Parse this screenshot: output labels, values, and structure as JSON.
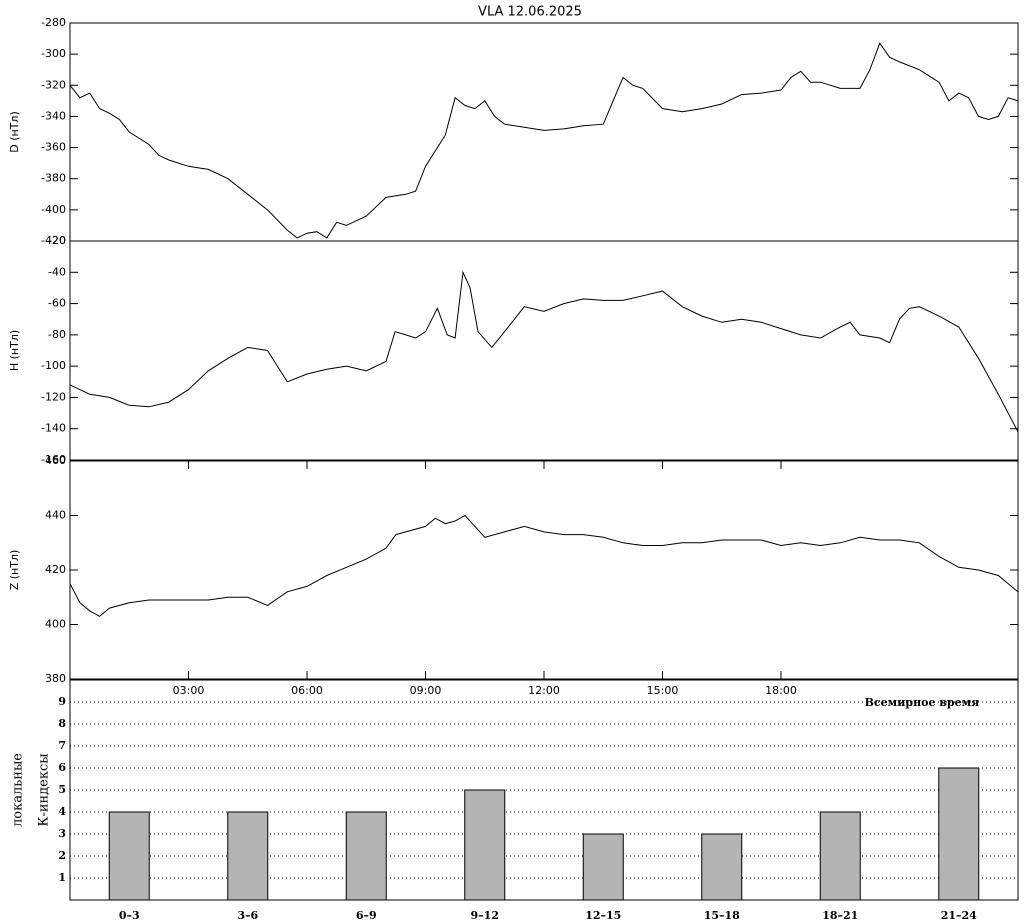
{
  "chart_data": [
    {
      "type": "line",
      "title": "VLA   12.06.2025",
      "y_label": "D (нТл)",
      "color": "#000000",
      "xlim": [
        0,
        24
      ],
      "ylim": [
        -420,
        -280
      ],
      "yticks": [
        -280,
        -300,
        -320,
        -340,
        -360,
        -380,
        -400,
        -420
      ],
      "x": [
        0,
        0.25,
        0.5,
        0.75,
        1,
        1.25,
        1.5,
        2,
        2.25,
        2.5,
        3,
        3.5,
        4,
        4.5,
        5,
        5.5,
        5.75,
        6,
        6.25,
        6.5,
        6.75,
        7,
        7.5,
        8,
        8.5,
        8.75,
        9,
        9.25,
        9.5,
        9.75,
        10,
        10.25,
        10.5,
        10.75,
        11,
        11.5,
        12,
        12.5,
        13,
        13.5,
        13.75,
        14,
        14.25,
        14.5,
        15,
        15.5,
        16,
        16.5,
        17,
        17.5,
        18,
        18.25,
        18.5,
        18.75,
        19,
        19.5,
        20,
        20.25,
        20.5,
        20.75,
        21,
        21.5,
        22,
        22.25,
        22.5,
        22.75,
        23,
        23.25,
        23.5,
        23.75,
        24
      ],
      "values": [
        -320,
        -328,
        -325,
        -335,
        -338,
        -342,
        -350,
        -358,
        -365,
        -368,
        -372,
        -374,
        -380,
        -390,
        -400,
        -413,
        -418,
        -415,
        -414,
        -418,
        -408,
        -410,
        -404,
        -392,
        -390,
        -388,
        -372,
        -362,
        -352,
        -328,
        -333,
        -335,
        -330,
        -340,
        -345,
        -347,
        -349,
        -348,
        -346,
        -345,
        -330,
        -315,
        -320,
        -322,
        -335,
        -337,
        -335,
        -332,
        -326,
        -325,
        -323,
        -315,
        -311,
        -318,
        -318,
        -322,
        -322,
        -310,
        -293,
        -302,
        -305,
        -310,
        -318,
        -330,
        -325,
        -328,
        -340,
        -342,
        -340,
        -328,
        -330
      ]
    },
    {
      "type": "line",
      "y_label": "H (нТл)",
      "color": "#000000",
      "xlim": [
        0,
        24
      ],
      "ylim": [
        -160,
        -20
      ],
      "yticks": [
        -20,
        -40,
        -60,
        -80,
        -100,
        -120,
        -140,
        -160
      ],
      "x": [
        0,
        0.5,
        1,
        1.5,
        2,
        2.5,
        3,
        3.5,
        4,
        4.5,
        5,
        5.25,
        5.5,
        6,
        6.5,
        7,
        7.5,
        8,
        8.23,
        8.5,
        8.75,
        9,
        9.3,
        9.55,
        9.75,
        9.95,
        10.13,
        10.33,
        10.68,
        11,
        11.5,
        12,
        12.5,
        13,
        13.5,
        14,
        14.5,
        15,
        15.5,
        16,
        16.5,
        17,
        17.5,
        18,
        18.5,
        19,
        19.5,
        19.75,
        20,
        20.5,
        20.75,
        21,
        21.25,
        21.5,
        22,
        22.5,
        23,
        23.5,
        24
      ],
      "values": [
        -112,
        -118,
        -120,
        -125,
        -126,
        -123,
        -115,
        -103,
        -95,
        -88,
        -90,
        -100,
        -110,
        -105,
        -102,
        -100,
        -103,
        -97,
        -78,
        -80,
        -82,
        -78,
        -63,
        -80,
        -82,
        -40,
        -50,
        -78,
        -88,
        -78,
        -62,
        -65,
        -60,
        -57,
        -58,
        -58,
        -55,
        -52,
        -62,
        -68,
        -72,
        -70,
        -72,
        -76,
        -80,
        -82,
        -75,
        -72,
        -80,
        -82,
        -85,
        -70,
        -63,
        -62,
        -68,
        -75,
        -95,
        -118,
        -142
      ]
    },
    {
      "type": "line",
      "y_label": "Z (нТл)",
      "x_label": "Всемирное время",
      "color": "#000000",
      "xlim": [
        0,
        24
      ],
      "ylim": [
        380,
        460
      ],
      "yticks": [
        380,
        400,
        420,
        440,
        460
      ],
      "xticks": [
        {
          "value": 3,
          "label": "03:00"
        },
        {
          "value": 6,
          "label": "06:00"
        },
        {
          "value": 9,
          "label": "09:00"
        },
        {
          "value": 12,
          "label": "12:00"
        },
        {
          "value": 15,
          "label": "15:00"
        },
        {
          "value": 18,
          "label": "18:00"
        }
      ],
      "x": [
        0,
        0.25,
        0.5,
        0.75,
        1,
        1.5,
        2,
        2.5,
        3,
        3.5,
        4,
        4.5,
        5,
        5.5,
        6,
        6.5,
        7,
        7.5,
        8,
        8.25,
        8.5,
        9,
        9.25,
        9.5,
        9.75,
        10,
        10.25,
        10.5,
        11,
        11.5,
        12,
        12.5,
        13,
        13.5,
        14,
        14.5,
        15,
        15.5,
        16,
        16.5,
        17,
        17.5,
        18,
        18.5,
        19,
        19.5,
        20,
        20.5,
        21,
        21.5,
        22,
        22.5,
        23,
        23.5,
        23.75,
        24
      ],
      "values": [
        415,
        408,
        405,
        403,
        406,
        408,
        409,
        409,
        409,
        409,
        410,
        410,
        407,
        412,
        414,
        418,
        421,
        424,
        428,
        433,
        434,
        436,
        439,
        437,
        438,
        440,
        436,
        432,
        434,
        436,
        434,
        433,
        433,
        432,
        430,
        429,
        429,
        430,
        430,
        431,
        431,
        431,
        429,
        430,
        429,
        430,
        432,
        431,
        431,
        430,
        425,
        421,
        420,
        418,
        415,
        412
      ]
    },
    {
      "type": "bar",
      "y_label_lines": [
        "локальные",
        "К-индексы"
      ],
      "color": "#b4b4b4",
      "grid": true,
      "categories": [
        "0–3",
        "3–6",
        "6–9",
        "9–12",
        "12–15",
        "15–18",
        "18–21",
        "21–24"
      ],
      "values": [
        4,
        4,
        4,
        5,
        3,
        3,
        4,
        6
      ],
      "ylim": [
        0,
        10
      ],
      "yticks": [
        1,
        2,
        3,
        4,
        5,
        6,
        7,
        8,
        9
      ]
    }
  ]
}
